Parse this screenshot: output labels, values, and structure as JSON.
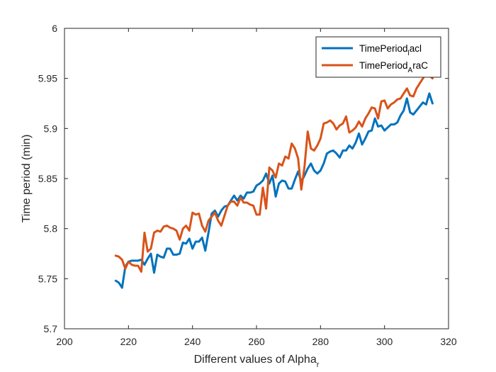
{
  "chart_data": {
    "type": "line",
    "title": "",
    "xlabel": {
      "main": "Different values of Alpha",
      "subscript": "r"
    },
    "ylabel": "Time period (min)",
    "xlim": [
      200,
      320
    ],
    "ylim": [
      5.7,
      6.0
    ],
    "xticks": [
      200,
      220,
      240,
      260,
      280,
      300,
      320
    ],
    "yticks": [
      5.7,
      5.75,
      5.8,
      5.85,
      5.9,
      5.95,
      6
    ],
    "xtick_labels": [
      "200",
      "220",
      "240",
      "260",
      "280",
      "300",
      "320"
    ],
    "ytick_labels": [
      "5.7",
      "5.75",
      "5.8",
      "5.85",
      "5.9",
      "5.95",
      "6"
    ],
    "grid": false,
    "legend_position": "top-right",
    "x": [
      216,
      217,
      218,
      219,
      220,
      221,
      222,
      223,
      224,
      225,
      226,
      227,
      228,
      229,
      230,
      231,
      232,
      233,
      234,
      235,
      236,
      237,
      238,
      239,
      240,
      241,
      242,
      243,
      244,
      245,
      246,
      247,
      248,
      249,
      250,
      251,
      252,
      253,
      254,
      255,
      256,
      257,
      258,
      259,
      260,
      261,
      262,
      263,
      264,
      265,
      266,
      267,
      268,
      269,
      270,
      271,
      272,
      273,
      274,
      275,
      276,
      277,
      278,
      279,
      280,
      281,
      282,
      283,
      284,
      285,
      286,
      287,
      288,
      289,
      290,
      291,
      292,
      293,
      294,
      295,
      296,
      297,
      298,
      299,
      300,
      301,
      302,
      303,
      304,
      305,
      306,
      307,
      308,
      309,
      310,
      311,
      312,
      313,
      314,
      315
    ],
    "series": [
      {
        "legend_main": "TimePeriod",
        "legend_sub": "l",
        "legend_after": "acl",
        "color": "#0072bd",
        "values": [
          5.748,
          5.746,
          5.741,
          5.762,
          5.767,
          5.768,
          5.768,
          5.768,
          5.769,
          5.764,
          5.77,
          5.775,
          5.756,
          5.774,
          5.772,
          5.771,
          5.78,
          5.78,
          5.774,
          5.774,
          5.775,
          5.786,
          5.785,
          5.79,
          5.78,
          5.787,
          5.787,
          5.791,
          5.778,
          5.796,
          5.815,
          5.818,
          5.812,
          5.818,
          5.822,
          5.823,
          5.828,
          5.833,
          5.828,
          5.833,
          5.83,
          5.836,
          5.836,
          5.837,
          5.843,
          5.845,
          5.848,
          5.855,
          5.845,
          5.853,
          5.832,
          5.845,
          5.848,
          5.847,
          5.84,
          5.84,
          5.849,
          5.857,
          5.847,
          5.853,
          5.86,
          5.865,
          5.858,
          5.855,
          5.858,
          5.865,
          5.875,
          5.877,
          5.878,
          5.875,
          5.871,
          5.878,
          5.878,
          5.883,
          5.88,
          5.886,
          5.895,
          5.884,
          5.89,
          5.897,
          5.898,
          5.91,
          5.902,
          5.903,
          5.898,
          5.901,
          5.904,
          5.904,
          5.906,
          5.913,
          5.918,
          5.93,
          5.916,
          5.914,
          5.918,
          5.922,
          5.926,
          5.924,
          5.935,
          5.925
        ]
      },
      {
        "legend_main": "TimePeriod",
        "legend_sub": "A",
        "legend_after": "raC",
        "color": "#d95319",
        "values": [
          5.773,
          5.772,
          5.769,
          5.76,
          5.767,
          5.764,
          5.763,
          5.763,
          5.757,
          5.796,
          5.777,
          5.78,
          5.796,
          5.798,
          5.797,
          5.802,
          5.803,
          5.801,
          5.8,
          5.798,
          5.789,
          5.8,
          5.803,
          5.798,
          5.816,
          5.814,
          5.815,
          5.803,
          5.797,
          5.808,
          5.812,
          5.816,
          5.808,
          5.803,
          5.813,
          5.823,
          5.827,
          5.827,
          5.823,
          5.831,
          5.826,
          5.826,
          5.824,
          5.823,
          5.814,
          5.814,
          5.841,
          5.82,
          5.861,
          5.858,
          5.851,
          5.865,
          5.863,
          5.872,
          5.87,
          5.885,
          5.88,
          5.87,
          5.839,
          5.862,
          5.897,
          5.88,
          5.878,
          5.883,
          5.89,
          5.905,
          5.906,
          5.908,
          5.905,
          5.899,
          5.903,
          5.905,
          5.912,
          5.896,
          5.898,
          5.901,
          5.907,
          5.902,
          5.91,
          5.915,
          5.921,
          5.92,
          5.91,
          5.927,
          5.928,
          5.92,
          5.924,
          5.926,
          5.929,
          5.93,
          5.935,
          5.94,
          5.933,
          5.932,
          5.94,
          5.945,
          5.95,
          5.955,
          5.953,
          5.95
        ]
      }
    ]
  }
}
